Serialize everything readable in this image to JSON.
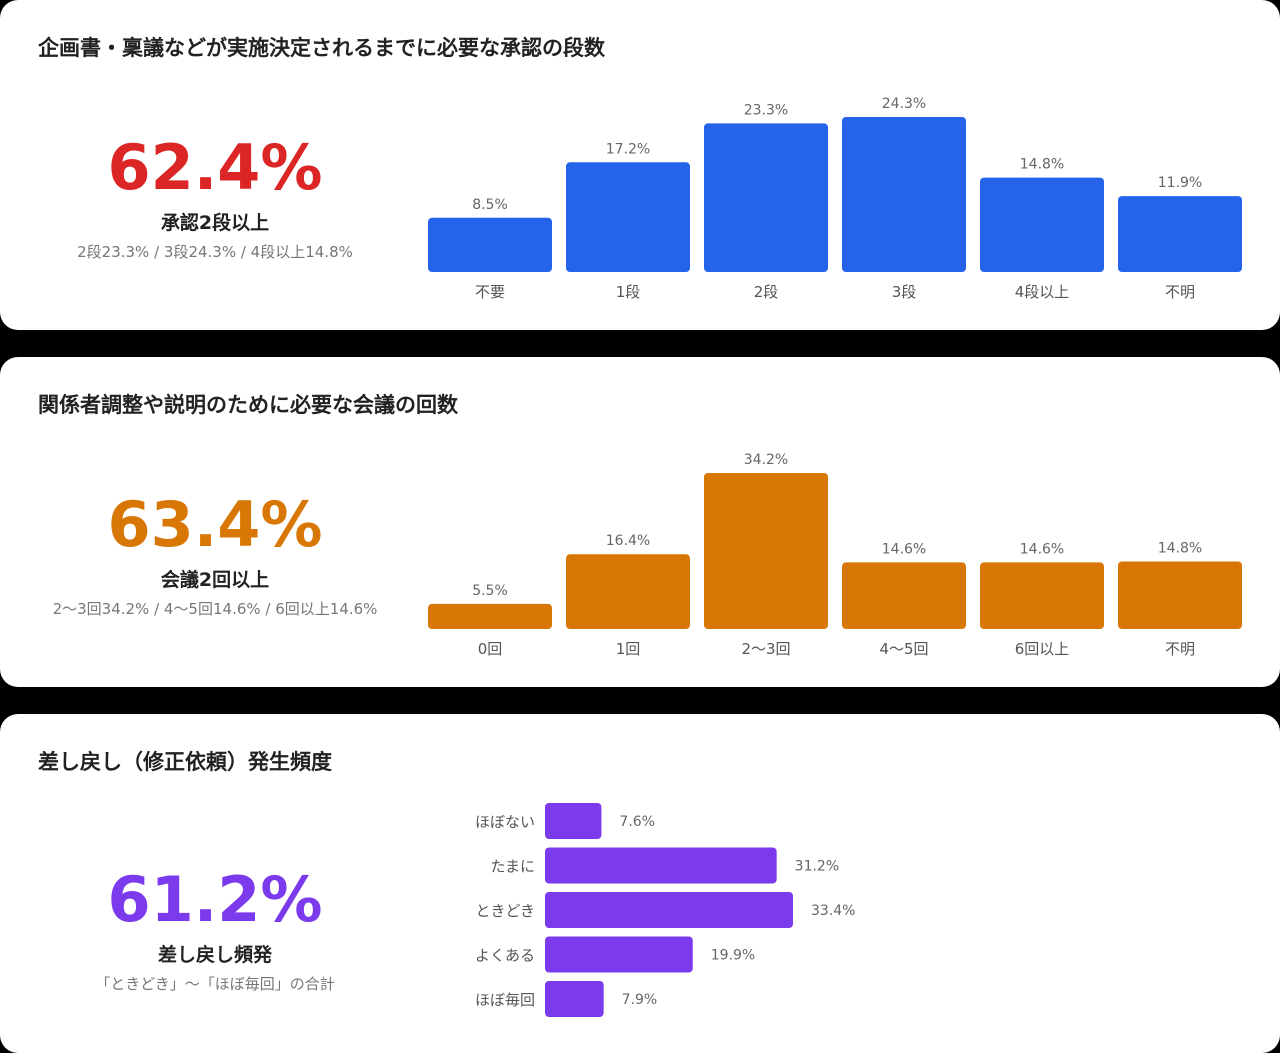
{
  "sections": [
    {
      "title": "企画書・稟議などが実施決定されるまでに必要な承認の段数",
      "highlight": {
        "value": "62.4%",
        "label": "承認2段以上",
        "detail": "2段23.3% / 3段24.3% / 4段以上14.8%"
      }
    },
    {
      "title": "関係者調整や説明のために必要な会議の回数",
      "highlight": {
        "value": "63.4%",
        "label": "会議2回以上",
        "detail": "2〜3回34.2% / 4〜5回14.6% / 6回以上14.6%"
      }
    },
    {
      "title": "差し戻し（修正依頼）発生頻度",
      "highlight": {
        "value": "61.2%",
        "label": "差し戻し頻発",
        "detail": "「ときどき」〜「ほぼ毎回」の合計"
      }
    }
  ],
  "colors": {
    "approval": "#2563eb",
    "meeting": "#d97706",
    "rework": "#7c3aed",
    "approval_highlight": "#dc2626"
  },
  "chart_data": [
    {
      "type": "bar",
      "categories": [
        "不要",
        "1段",
        "2段",
        "3段",
        "4段以上",
        "不明"
      ],
      "values": [
        8.5,
        17.2,
        23.3,
        24.3,
        14.8,
        11.9
      ],
      "value_labels": [
        "8.5%",
        "17.2%",
        "23.3%",
        "24.3%",
        "14.8%",
        "11.9%"
      ],
      "unit": "%"
    },
    {
      "type": "bar",
      "categories": [
        "0回",
        "1回",
        "2〜3回",
        "4〜5回",
        "6回以上",
        "不明"
      ],
      "values": [
        5.5,
        16.4,
        34.2,
        14.6,
        14.6,
        14.8
      ],
      "value_labels": [
        "5.5%",
        "16.4%",
        "34.2%",
        "14.6%",
        "14.6%",
        "14.8%"
      ],
      "unit": "%"
    },
    {
      "type": "bar",
      "orientation": "horizontal",
      "categories": [
        "ほぼない",
        "たまに",
        "ときどき",
        "よくある",
        "ほぼ毎回"
      ],
      "values": [
        7.6,
        31.2,
        33.4,
        19.9,
        7.9
      ],
      "value_labels": [
        "7.6%",
        "31.2%",
        "33.4%",
        "19.9%",
        "7.9%"
      ],
      "unit": "%"
    }
  ]
}
